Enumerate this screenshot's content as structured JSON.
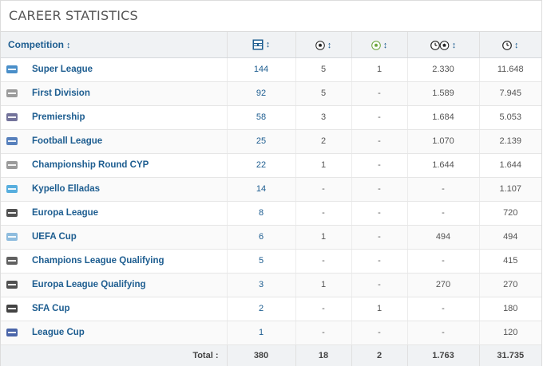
{
  "title": "CAREER STATISTICS",
  "header": {
    "competition": "Competition",
    "sort_glyph": "↕"
  },
  "rows": [
    {
      "competition": "Super League",
      "apps": "144",
      "goals": "5",
      "assists": "1",
      "mins_per_goal": "2.330",
      "minutes": "11.648",
      "logo_color": "#2a7bc0"
    },
    {
      "competition": "First Division",
      "apps": "92",
      "goals": "5",
      "assists": "-",
      "mins_per_goal": "1.589",
      "minutes": "7.945",
      "logo_color": "#8a8a8a"
    },
    {
      "competition": "Premiership",
      "apps": "58",
      "goals": "3",
      "assists": "-",
      "mins_per_goal": "1.684",
      "minutes": "5.053",
      "logo_color": "#5a5a8a"
    },
    {
      "competition": "Football League",
      "apps": "25",
      "goals": "2",
      "assists": "-",
      "mins_per_goal": "1.070",
      "minutes": "2.139",
      "logo_color": "#3a6ab0"
    },
    {
      "competition": "Championship Round CYP",
      "apps": "22",
      "goals": "1",
      "assists": "-",
      "mins_per_goal": "1.644",
      "minutes": "1.644",
      "logo_color": "#8a8a8a"
    },
    {
      "competition": "Kypello Elladas",
      "apps": "14",
      "goals": "-",
      "assists": "-",
      "mins_per_goal": "-",
      "minutes": "1.107",
      "logo_color": "#3aa0d8"
    },
    {
      "competition": "Europa League",
      "apps": "8",
      "goals": "-",
      "assists": "-",
      "mins_per_goal": "-",
      "minutes": "720",
      "logo_color": "#333333"
    },
    {
      "competition": "UEFA Cup",
      "apps": "6",
      "goals": "1",
      "assists": "-",
      "mins_per_goal": "494",
      "minutes": "494",
      "logo_color": "#7ab0d8"
    },
    {
      "competition": "Champions League Qualifying",
      "apps": "5",
      "goals": "-",
      "assists": "-",
      "mins_per_goal": "-",
      "minutes": "415",
      "logo_color": "#444444"
    },
    {
      "competition": "Europa League Qualifying",
      "apps": "3",
      "goals": "1",
      "assists": "-",
      "mins_per_goal": "270",
      "minutes": "270",
      "logo_color": "#333333"
    },
    {
      "competition": "SFA Cup",
      "apps": "2",
      "goals": "-",
      "assists": "1",
      "mins_per_goal": "-",
      "minutes": "180",
      "logo_color": "#222222"
    },
    {
      "competition": "League Cup",
      "apps": "1",
      "goals": "-",
      "assists": "-",
      "mins_per_goal": "-",
      "minutes": "120",
      "logo_color": "#2a4a9a"
    }
  ],
  "totals": {
    "label": "Total :",
    "apps": "380",
    "goals": "18",
    "assists": "2",
    "mins_per_goal": "1.763",
    "minutes": "31.735"
  },
  "colors": {
    "link": "#1d5d90",
    "header_bg": "#f0f2f4"
  },
  "icons": {
    "appearances": "lineup-icon",
    "goals": "ball-icon",
    "assists": "assist-ball-icon",
    "minutes_per_goal": "clock-ball-icon",
    "minutes": "clock-icon"
  }
}
